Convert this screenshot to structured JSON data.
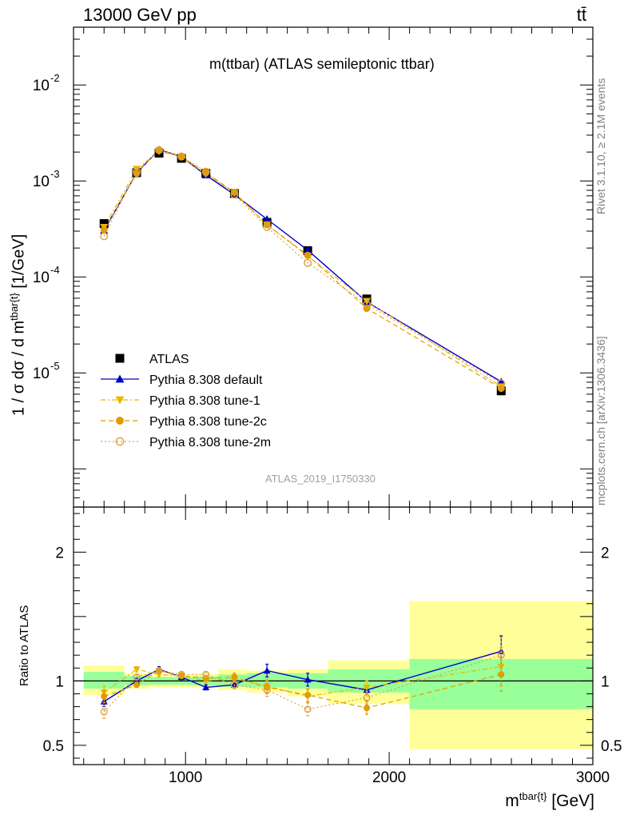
{
  "header": {
    "left": "13000 GeV pp",
    "right": "tt̄"
  },
  "side_labels": {
    "rivet": "Rivet 3.1.10, ≥ 2.1M events",
    "mcplots": "mcplots.cern.ch [arXiv:1306.3436]"
  },
  "chart_data": [
    {
      "type": "scatter",
      "title": "m(ttbar) (ATLAS semileptonic ttbar)",
      "analysis_id": "ATLAS_2019_I1750330",
      "xlabel_main": "m",
      "xlabel_sup": "tbar{t}",
      "xlabel_unit": "[GeV]",
      "ylabel_main": "1 / σ dσ / d m",
      "ylabel_sup": "tbar{t}",
      "ylabel_unit": "[1/GeV]",
      "y_scale": "log",
      "xlim": [
        450,
        3000
      ],
      "ylim": [
        4e-07,
        0.04
      ],
      "y_ticks": [
        {
          "value": 0.01,
          "label": "10",
          "exp": "-2"
        },
        {
          "value": 0.001,
          "label": "10",
          "exp": "-3"
        },
        {
          "value": 0.0001,
          "label": "10",
          "exp": "-4"
        },
        {
          "value": 1e-05,
          "label": "10",
          "exp": "-5"
        }
      ],
      "legend_position": "bottom-left",
      "x": [
        600,
        760,
        870,
        980,
        1100,
        1240,
        1400,
        1600,
        1890,
        2550
      ],
      "series": [
        {
          "name": "ATLAS",
          "color": "#000000",
          "marker": "square",
          "line": "none",
          "values": [
            0.00036,
            0.00122,
            0.00195,
            0.00172,
            0.0012,
            0.00074,
            0.00037,
            0.000188,
            5.9e-05,
            6.5e-06
          ]
        },
        {
          "name": "Pythia 8.308 default",
          "color": "#0000cc",
          "marker": "triangle-up",
          "line": "solid",
          "values": [
            0.000305,
            0.00121,
            0.00212,
            0.00179,
            0.00115,
            0.00072,
            0.0004,
            0.00019,
            5.5e-05,
            8.1e-06
          ]
        },
        {
          "name": "Pythia 8.308 tune-1",
          "color": "#e8b800",
          "marker": "triangle-down",
          "line": "dashdot",
          "values": [
            0.00033,
            0.00133,
            0.00204,
            0.00178,
            0.00118,
            0.00075,
            0.00035,
            0.000165,
            5.6e-05,
            7.2e-06
          ]
        },
        {
          "name": "Pythia 8.308 tune-2c",
          "color": "#e09c00",
          "marker": "circle",
          "line": "dashed",
          "values": [
            0.00031,
            0.0012,
            0.0021,
            0.00178,
            0.00122,
            0.00076,
            0.00035,
            0.000168,
            4.7e-05,
            6.9e-06
          ]
        },
        {
          "name": "Pythia 8.308 tune-2m",
          "color": "#e0a040",
          "marker": "circle-open",
          "line": "dotted",
          "values": [
            0.000265,
            0.00126,
            0.0021,
            0.0018,
            0.00125,
            0.00072,
            0.00033,
            0.00014,
            5.2e-05,
            7.8e-06
          ]
        }
      ]
    },
    {
      "type": "scatter",
      "ylabel": "Ratio to ATLAS",
      "xlim": [
        450,
        3000
      ],
      "ylim": [
        0.35,
        2.35
      ],
      "x_ticks": [
        1000,
        2000,
        3000
      ],
      "y_ticks": [
        0.5,
        1,
        2
      ],
      "reference_line": 1,
      "bins": [
        {
          "lo": 500,
          "hi": 700,
          "inner": [
            0.94,
            1.07
          ],
          "outer": [
            0.89,
            1.12
          ]
        },
        {
          "lo": 700,
          "hi": 820,
          "inner": [
            0.965,
            1.04
          ],
          "outer": [
            0.94,
            1.06
          ]
        },
        {
          "lo": 820,
          "hi": 920,
          "inner": [
            0.97,
            1.03
          ],
          "outer": [
            0.95,
            1.05
          ]
        },
        {
          "lo": 920,
          "hi": 1040,
          "inner": [
            0.97,
            1.03
          ],
          "outer": [
            0.95,
            1.05
          ]
        },
        {
          "lo": 1040,
          "hi": 1160,
          "inner": [
            0.965,
            1.035
          ],
          "outer": [
            0.945,
            1.055
          ]
        },
        {
          "lo": 1160,
          "hi": 1300,
          "inner": [
            0.955,
            1.05
          ],
          "outer": [
            0.93,
            1.09
          ]
        },
        {
          "lo": 1300,
          "hi": 1500,
          "inner": [
            0.95,
            1.06
          ],
          "outer": [
            0.91,
            1.08
          ]
        },
        {
          "lo": 1500,
          "hi": 1700,
          "inner": [
            0.94,
            1.06
          ],
          "outer": [
            0.88,
            1.09
          ]
        },
        {
          "lo": 1700,
          "hi": 2100,
          "inner": [
            0.91,
            1.09
          ],
          "outer": [
            0.82,
            1.16
          ]
        },
        {
          "lo": 2100,
          "hi": 3000,
          "inner": [
            0.78,
            1.17
          ],
          "outer": [
            0.47,
            1.62
          ]
        }
      ],
      "band_colors": {
        "inner": "#99ff99",
        "outer": "#ffff99"
      },
      "series": [
        {
          "name": "Pythia 8.308 default",
          "color": "#0000cc",
          "marker": "triangle-up",
          "line": "solid",
          "values": [
            0.84,
            1.0,
            1.09,
            1.03,
            0.95,
            0.97,
            1.08,
            1.01,
            0.93,
            1.23
          ],
          "errors": [
            0.04,
            0.02,
            0.02,
            0.02,
            0.02,
            0.02,
            0.05,
            0.05,
            0.03,
            0.12
          ]
        },
        {
          "name": "Pythia 8.308 tune-1",
          "color": "#e8b800",
          "marker": "triangle-down",
          "line": "dashdot",
          "values": [
            0.91,
            1.09,
            1.05,
            1.04,
            1.0,
            1.02,
            0.96,
            0.88,
            0.95,
            1.11
          ],
          "errors": [
            0.05,
            0.02,
            0.02,
            0.02,
            0.02,
            0.03,
            0.05,
            0.05,
            0.05,
            0.15
          ]
        },
        {
          "name": "Pythia 8.308 tune-2c",
          "color": "#e09c00",
          "marker": "circle",
          "line": "dashed",
          "values": [
            0.88,
            0.97,
            1.08,
            1.04,
            1.02,
            1.03,
            0.95,
            0.89,
            0.79,
            1.05
          ],
          "errors": [
            0.05,
            0.02,
            0.02,
            0.02,
            0.02,
            0.03,
            0.05,
            0.05,
            0.05,
            0.13
          ]
        },
        {
          "name": "Pythia 8.308 tune-2m",
          "color": "#e0a040",
          "marker": "circle-open",
          "line": "dotted",
          "values": [
            0.76,
            1.03,
            1.08,
            1.05,
            1.05,
            0.97,
            0.93,
            0.78,
            0.87,
            1.2
          ],
          "errors": [
            0.05,
            0.02,
            0.02,
            0.02,
            0.02,
            0.03,
            0.05,
            0.05,
            0.05,
            0.14
          ]
        }
      ]
    }
  ]
}
